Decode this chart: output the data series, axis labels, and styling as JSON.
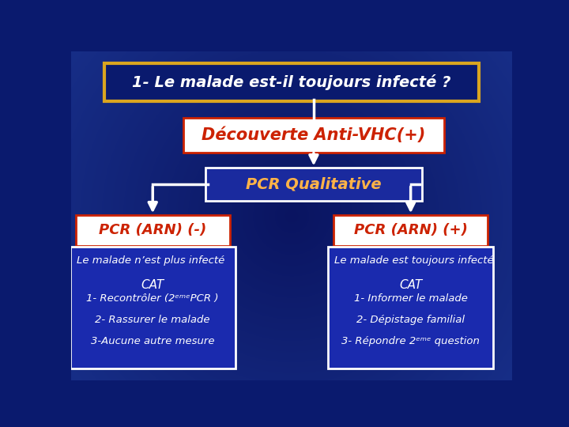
{
  "bg_color": "#0a1a6e",
  "title_text": "1- Le malade est-il toujours infecté ?",
  "title_bg": "#0a1a6e",
  "title_text_color": "white",
  "title_border_color": "#DAA520",
  "node1_text": "Découverte Anti-VHC(+)",
  "node1_bg": "white",
  "node1_text_color": "#CC2200",
  "node1_border_color": "#CC2200",
  "node2_text": "PCR Qualitative",
  "node2_bg": "#1a2a9e",
  "node2_text_color": "#FFB347",
  "node2_border_color": "white",
  "node_left_text": "PCR (ARN) (-)",
  "node_left_bg": "white",
  "node_left_text_color": "#CC2200",
  "node_left_border_color": "#CC2200",
  "node_right_text": "PCR (ARN) (+)",
  "node_right_bg": "white",
  "node_right_text_color": "#CC2200",
  "node_right_border_color": "#CC2200",
  "box_left_title": "Le malade n’est plus infecté",
  "box_left_cat": "CAT",
  "box_left_lines": [
    "1- Recontrôler (2ᵉᵐᵉPCR )",
    "2- Rassurer le malade",
    "3-Aucune autre mesure"
  ],
  "box_right_title": "Le malade est toujours infecté",
  "box_right_cat": "CAT",
  "box_right_lines": [
    "1- Informer le malade",
    "2- Dépistage familial",
    "3- Répondre 2ᵉᵐᵉ question"
  ],
  "box_bg": "#1a2aae",
  "box_text_color": "white",
  "box_border_color": "white",
  "arrow_color": "white",
  "line_color": "white"
}
